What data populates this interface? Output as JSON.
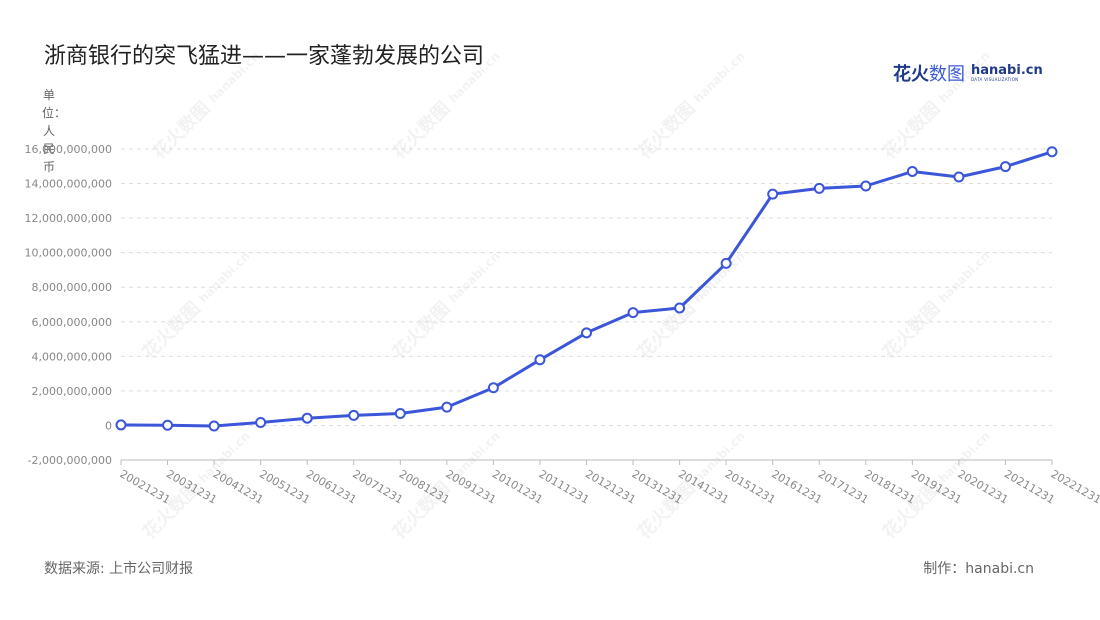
{
  "header": {
    "title": "浙商银行的突飞猛进——一家蓬勃发展的公司"
  },
  "logo": {
    "cn_bold": "花火",
    "cn_light": "数图",
    "domain": "hanabi.cn",
    "tagline": "DATA VISUALIZATION"
  },
  "watermark": {
    "cn": "花火数图",
    "en": "hanabi.cn"
  },
  "unit_label": "单位：人民币",
  "footer": {
    "source": "数据来源: 上市公司财报",
    "credit": "制作：hanabi.cn"
  },
  "colors": {
    "line": "#3b56d9",
    "marker_fill": "#ffffff",
    "grid": "#dddddd",
    "axis": "#bbbbbb"
  },
  "chart_data": {
    "type": "line",
    "title": "浙商银行的突飞猛进——一家蓬勃发展的公司",
    "ylabel": "单位：人民币",
    "xlabel": "",
    "ylim": [
      -2000000000,
      16000000000
    ],
    "yticks": [
      -2000000000,
      0,
      2000000000,
      4000000000,
      6000000000,
      8000000000,
      10000000000,
      12000000000,
      14000000000,
      16000000000
    ],
    "ytick_labels": [
      "-2,000,000,000",
      "0",
      "2,000,000,000",
      "4,000,000,000",
      "6,000,000,000",
      "8,000,000,000",
      "10,000,000,000",
      "12,000,000,000",
      "14,000,000,000",
      "16,000,000,000"
    ],
    "grid": "horizontal dashed",
    "categories": [
      "20021231",
      "20031231",
      "20041231",
      "20051231",
      "20061231",
      "20071231",
      "20081231",
      "20091231",
      "20101231",
      "20111231",
      "20121231",
      "20131231",
      "20141231",
      "20151231",
      "20161231",
      "20171231",
      "20181231",
      "20191231",
      "20201231",
      "20211231",
      "20221231"
    ],
    "series": [
      {
        "values": [
          30000000,
          10000000,
          -30000000,
          170000000,
          420000000,
          580000000,
          690000000,
          1060000000,
          2180000000,
          3800000000,
          5360000000,
          6530000000,
          6800000000,
          9380000000,
          13390000000,
          13720000000,
          13860000000,
          14700000000,
          14380000000,
          14980000000,
          15840000000
        ]
      }
    ]
  }
}
